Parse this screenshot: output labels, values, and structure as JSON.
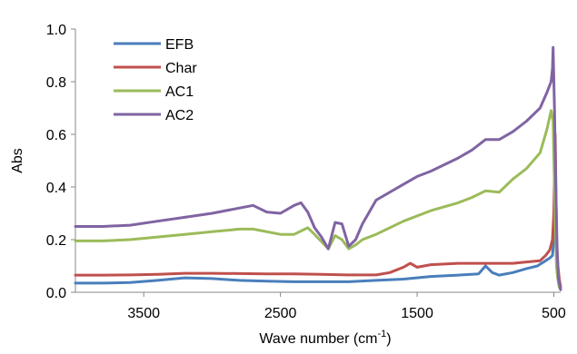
{
  "chart_data": {
    "type": "line",
    "title": "",
    "xlabel": "Wave number (cm",
    "xlabel_sup": "-1",
    "xlabel_end": ")",
    "ylabel": "Abs",
    "xlim": [
      4000,
      450
    ],
    "ylim": [
      0,
      1.0
    ],
    "x_reversed": true,
    "x_ticks": [
      3500,
      2500,
      1500,
      500
    ],
    "y_ticks": [
      0.0,
      0.2,
      0.4,
      0.6,
      0.8,
      1.0
    ],
    "x_tick_labels": [
      "3500",
      "2500",
      "1500",
      "500"
    ],
    "y_tick_labels": [
      "0.0",
      "0.2",
      "0.4",
      "0.6",
      "0.8",
      "1.0"
    ],
    "grid": false,
    "legend_position": "top-left",
    "series": [
      {
        "name": "EFB",
        "color": "#4a7ebb",
        "x": [
          4000,
          3800,
          3600,
          3400,
          3200,
          3000,
          2800,
          2600,
          2400,
          2200,
          2000,
          1800,
          1600,
          1400,
          1200,
          1050,
          1000,
          950,
          900,
          800,
          700,
          620,
          560,
          530,
          510,
          500,
          490,
          480,
          470,
          460,
          450
        ],
        "y": [
          0.035,
          0.035,
          0.037,
          0.045,
          0.055,
          0.052,
          0.045,
          0.042,
          0.04,
          0.04,
          0.04,
          0.045,
          0.05,
          0.06,
          0.065,
          0.07,
          0.1,
          0.075,
          0.065,
          0.075,
          0.09,
          0.1,
          0.12,
          0.13,
          0.14,
          0.2,
          0.5,
          0.1,
          0.05,
          0.02,
          0.01
        ]
      },
      {
        "name": "Char",
        "color": "#c0504d",
        "x": [
          4000,
          3800,
          3600,
          3400,
          3200,
          3000,
          2800,
          2600,
          2400,
          2200,
          2000,
          1800,
          1700,
          1600,
          1550,
          1500,
          1400,
          1200,
          1000,
          800,
          700,
          600,
          560,
          530,
          510,
          500,
          490,
          480,
          470,
          460,
          450
        ],
        "y": [
          0.065,
          0.065,
          0.066,
          0.068,
          0.072,
          0.072,
          0.071,
          0.07,
          0.07,
          0.068,
          0.066,
          0.066,
          0.075,
          0.095,
          0.11,
          0.095,
          0.105,
          0.11,
          0.11,
          0.11,
          0.115,
          0.12,
          0.14,
          0.16,
          0.2,
          0.3,
          0.6,
          0.2,
          0.1,
          0.05,
          0.02
        ]
      },
      {
        "name": "AC1",
        "color": "#9bbb59",
        "x": [
          4000,
          3800,
          3600,
          3400,
          3200,
          3000,
          2800,
          2700,
          2500,
          2400,
          2300,
          2250,
          2150,
          2100,
          2050,
          2000,
          1950,
          1900,
          1800,
          1600,
          1400,
          1200,
          1100,
          1000,
          900,
          800,
          700,
          600,
          550,
          520,
          505,
          495,
          480,
          470,
          460,
          450
        ],
        "y": [
          0.195,
          0.195,
          0.2,
          0.21,
          0.22,
          0.23,
          0.24,
          0.24,
          0.22,
          0.22,
          0.245,
          0.22,
          0.165,
          0.215,
          0.2,
          0.165,
          0.18,
          0.2,
          0.22,
          0.27,
          0.31,
          0.34,
          0.36,
          0.385,
          0.38,
          0.43,
          0.47,
          0.53,
          0.62,
          0.69,
          0.65,
          0.4,
          0.1,
          0.05,
          0.02,
          0.01
        ]
      },
      {
        "name": "AC2",
        "color": "#8064a2",
        "x": [
          4000,
          3800,
          3600,
          3400,
          3200,
          3000,
          2800,
          2700,
          2600,
          2500,
          2400,
          2350,
          2300,
          2250,
          2200,
          2150,
          2100,
          2050,
          2000,
          1950,
          1900,
          1800,
          1600,
          1500,
          1400,
          1200,
          1100,
          1000,
          900,
          800,
          700,
          600,
          550,
          520,
          510,
          505,
          495,
          485,
          475,
          465,
          450
        ],
        "y": [
          0.25,
          0.25,
          0.255,
          0.27,
          0.285,
          0.3,
          0.32,
          0.33,
          0.305,
          0.3,
          0.33,
          0.34,
          0.305,
          0.245,
          0.21,
          0.165,
          0.265,
          0.26,
          0.175,
          0.2,
          0.26,
          0.35,
          0.41,
          0.44,
          0.46,
          0.51,
          0.54,
          0.58,
          0.58,
          0.61,
          0.65,
          0.7,
          0.76,
          0.8,
          0.85,
          0.93,
          0.7,
          0.4,
          0.15,
          0.05,
          0.01
        ]
      }
    ]
  }
}
